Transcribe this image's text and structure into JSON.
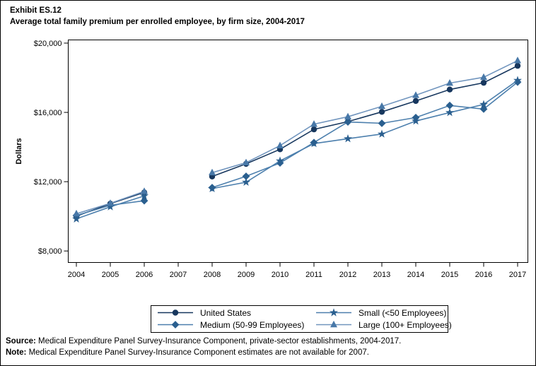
{
  "title": {
    "line1": "Exhibit ES.12",
    "line2": "Average total family premium per enrolled employee, by firm size, 2004-2017"
  },
  "chart_data": {
    "type": "line",
    "title": "Average total family premium per enrolled employee, by firm size, 2004-2017",
    "xlabel": "",
    "ylabel": "Dollars",
    "x_categories": [
      "2004",
      "2005",
      "2006",
      "2007",
      "2008",
      "2009",
      "2010",
      "2011",
      "2012",
      "2013",
      "2014",
      "2015",
      "2016",
      "2017"
    ],
    "y_ticks": [
      8000,
      12000,
      16000,
      20000
    ],
    "y_tick_labels": [
      "$8,000",
      "$12,000",
      "$16,000",
      "$20,000"
    ],
    "ylim": [
      7350,
      20230
    ],
    "grid": "off",
    "legend_position": "bottom-center",
    "missing_data_note": "no data points for 2007",
    "series": [
      {
        "name": "United States",
        "marker": "circle",
        "color_marker": "#17375E",
        "color_line": "#17375E",
        "values": [
          10010,
          10730,
          11380,
          null,
          12300,
          13030,
          13870,
          15020,
          15470,
          16030,
          16660,
          17320,
          17710,
          18690
        ]
      },
      {
        "name": "Medium (50-99 Employees)",
        "marker": "diamond",
        "color_marker": "#2A5F8F",
        "color_line": "#4C7FAD",
        "values": [
          10050,
          10640,
          10900,
          null,
          11660,
          12310,
          13080,
          14260,
          15450,
          15370,
          15700,
          16400,
          16190,
          17750
        ]
      },
      {
        "name": "Small (<50 Employees)",
        "marker": "star",
        "color_marker": "#2A5F8F",
        "color_line": "#4C7FAD",
        "values": [
          9850,
          10550,
          11180,
          null,
          11600,
          11970,
          13200,
          14200,
          14480,
          14750,
          15500,
          15990,
          16460,
          17850
        ]
      },
      {
        "name": "Large (100+ Employees)",
        "marker": "triangle",
        "color_marker": "#4878A8",
        "color_line": "#7195BE",
        "values": [
          10150,
          10750,
          11440,
          null,
          12520,
          13100,
          14080,
          15320,
          15750,
          16350,
          16990,
          17690,
          18030,
          18990
        ]
      }
    ],
    "legend_order_row_major": [
      0,
      2,
      1,
      3
    ]
  },
  "footnotes": {
    "source_label": "Source:",
    "source_text": " Medical Expenditure Panel Survey-Insurance Component, private-sector establishments, 2004-2017.",
    "note_label": "Note:",
    "note_text": " Medical Expenditure Panel Survey-Insurance Component estimates are not available for 2007."
  }
}
